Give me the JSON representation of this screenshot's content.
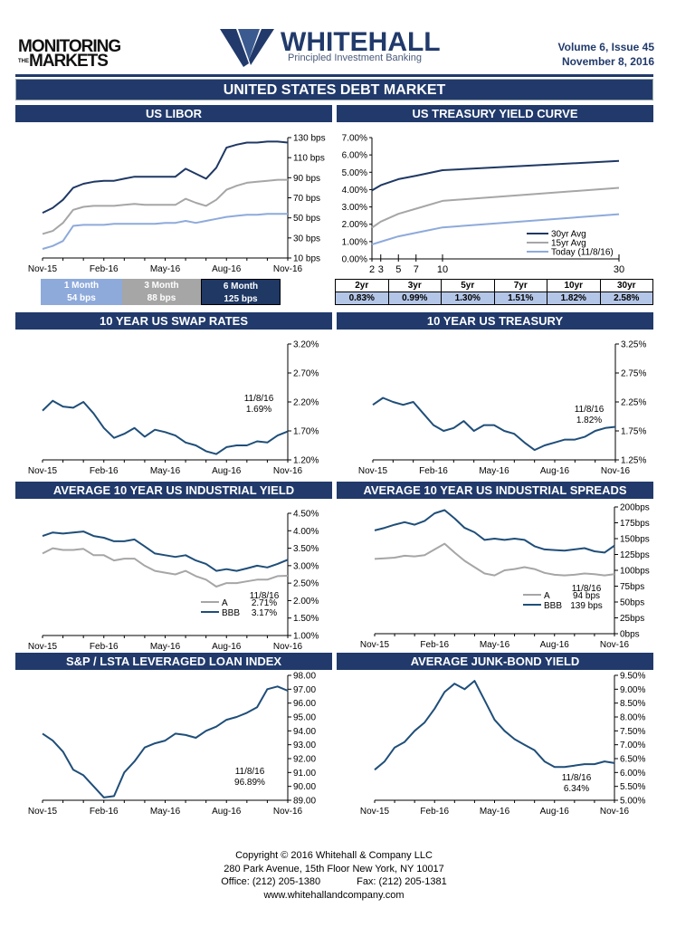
{
  "header": {
    "left_logo": "MONITORING THE MARKETS",
    "brand": "WHITEHALL",
    "tagline": "Principled Investment Banking",
    "volume": "Volume 6, Issue 45",
    "date": "November 8, 2016"
  },
  "banner": "UNITED STATES DEBT MARKET",
  "sections": {
    "libor": "US LIBOR",
    "yield_curve": "US TREASURY YIELD CURVE",
    "swap": "10 YEAR US SWAP RATES",
    "treasury": "10 YEAR US TREASURY",
    "industrial_yield": "AVERAGE 10 YEAR US INDUSTRIAL YIELD",
    "industrial_spreads": "AVERAGE 10 YEAR US INDUSTRIAL SPREADS",
    "loan_index": "S&P / LSTA LEVERAGED LOAN INDEX",
    "junk": "AVERAGE JUNK-BOND YIELD"
  },
  "libor_legend": [
    {
      "label": "1 Month",
      "value": "54 bps",
      "color": "#8eaadb"
    },
    {
      "label": "3 Month",
      "value": "88 bps",
      "color": "#a6a6a6"
    },
    {
      "label": "6 Month",
      "value": "125 bps",
      "color": "#1f3864"
    }
  ],
  "yield_table": {
    "headers": [
      "2yr",
      "3yr",
      "5yr",
      "7yr",
      "10yr",
      "30yr"
    ],
    "values": [
      "0.83%",
      "0.99%",
      "1.30%",
      "1.51%",
      "1.82%",
      "2.58%"
    ]
  },
  "chart_data": [
    {
      "id": "libor",
      "type": "line",
      "ylim": [
        10,
        130
      ],
      "y_ticks": [
        "10 bps",
        "30 bps",
        "50 bps",
        "70 bps",
        "90 bps",
        "110 bps",
        "130 bps"
      ],
      "x_ticks": [
        "Nov-15",
        "Feb-16",
        "May-16",
        "Aug-16",
        "Nov-16"
      ],
      "series": [
        {
          "name": "1 Month",
          "color": "#8eaadb",
          "values": [
            19,
            22,
            27,
            42,
            43,
            43,
            43,
            44,
            44,
            44,
            44,
            44,
            45,
            45,
            47,
            45,
            47,
            49,
            51,
            52,
            53,
            53,
            54,
            54,
            54
          ]
        },
        {
          "name": "3 Month",
          "color": "#a6a6a6",
          "values": [
            34,
            37,
            45,
            58,
            61,
            62,
            62,
            62,
            63,
            64,
            63,
            63,
            63,
            63,
            69,
            65,
            62,
            68,
            78,
            82,
            85,
            86,
            87,
            88,
            88
          ]
        },
        {
          "name": "6 Month",
          "color": "#1f3864",
          "values": [
            55,
            60,
            68,
            80,
            84,
            86,
            87,
            87,
            89,
            91,
            91,
            91,
            91,
            91,
            99,
            94,
            89,
            100,
            120,
            123,
            125,
            125,
            126,
            126,
            125
          ]
        }
      ]
    },
    {
      "id": "yield_curve",
      "type": "line",
      "xlim": [
        2,
        30
      ],
      "x": [
        2,
        3,
        5,
        7,
        10,
        30
      ],
      "ylim": [
        0,
        7
      ],
      "y_ticks": [
        "0.00%",
        "1.00%",
        "2.00%",
        "3.00%",
        "4.00%",
        "5.00%",
        "6.00%",
        "7.00%"
      ],
      "x_ticks": [
        "2",
        "3",
        "5",
        "7",
        "10",
        "30"
      ],
      "legend_position": "bottom-right",
      "series": [
        {
          "name": "30yr Avg",
          "color": "#1f3864",
          "values": [
            3.95,
            4.25,
            4.6,
            4.8,
            5.12,
            5.65
          ]
        },
        {
          "name": "15yr Avg",
          "color": "#a6a6a6",
          "values": [
            1.8,
            2.15,
            2.6,
            2.9,
            3.35,
            4.1
          ]
        },
        {
          "name": "Today (11/8/16)",
          "color": "#8eaadb",
          "values": [
            0.83,
            0.99,
            1.3,
            1.51,
            1.82,
            2.58
          ]
        }
      ]
    },
    {
      "id": "swap",
      "type": "line",
      "ylim": [
        1.2,
        3.2
      ],
      "y_ticks": [
        "1.20%",
        "1.70%",
        "2.20%",
        "2.70%",
        "3.20%"
      ],
      "x_ticks": [
        "Nov-15",
        "Feb-16",
        "May-16",
        "Aug-16",
        "Nov-16"
      ],
      "annotation": [
        "11/8/16",
        "1.69%"
      ],
      "series": [
        {
          "color": "#1f4e79",
          "values": [
            2.05,
            2.22,
            2.12,
            2.1,
            2.2,
            2.0,
            1.75,
            1.58,
            1.65,
            1.75,
            1.6,
            1.72,
            1.68,
            1.62,
            1.5,
            1.45,
            1.35,
            1.3,
            1.42,
            1.45,
            1.45,
            1.52,
            1.5,
            1.62,
            1.69
          ]
        }
      ]
    },
    {
      "id": "treasury",
      "type": "line",
      "ylim": [
        1.25,
        3.25
      ],
      "y_ticks": [
        "1.25%",
        "1.75%",
        "2.25%",
        "2.75%",
        "3.25%"
      ],
      "x_ticks": [
        "Nov-15",
        "Feb-16",
        "May-16",
        "Aug-16",
        "Nov-16"
      ],
      "annotation": [
        "11/8/16",
        "1.82%"
      ],
      "series": [
        {
          "color": "#1f4e79",
          "values": [
            2.2,
            2.32,
            2.25,
            2.2,
            2.25,
            2.05,
            1.85,
            1.75,
            1.8,
            1.92,
            1.75,
            1.85,
            1.85,
            1.75,
            1.7,
            1.55,
            1.42,
            1.5,
            1.55,
            1.6,
            1.6,
            1.65,
            1.75,
            1.8,
            1.82
          ]
        }
      ]
    },
    {
      "id": "industrial_yield",
      "type": "line",
      "ylim": [
        1,
        4.5
      ],
      "y_ticks": [
        "1.00%",
        "1.50%",
        "2.00%",
        "2.50%",
        "3.00%",
        "3.50%",
        "4.00%",
        "4.50%"
      ],
      "x_ticks": [
        "Nov-15",
        "Feb-16",
        "May-16",
        "Aug-16",
        "Nov-16"
      ],
      "legend_position": "bottom-right",
      "legend_header": "11/8/16",
      "series": [
        {
          "name": "A",
          "latest": "2.71%",
          "color": "#a6a6a6",
          "values": [
            3.35,
            3.5,
            3.45,
            3.45,
            3.48,
            3.3,
            3.3,
            3.15,
            3.2,
            3.2,
            3.0,
            2.85,
            2.8,
            2.75,
            2.85,
            2.7,
            2.6,
            2.4,
            2.5,
            2.5,
            2.55,
            2.6,
            2.6,
            2.7,
            2.71
          ]
        },
        {
          "name": "BBB",
          "latest": "3.17%",
          "color": "#1f4e79",
          "values": [
            3.85,
            3.95,
            3.92,
            3.95,
            3.98,
            3.85,
            3.8,
            3.7,
            3.7,
            3.75,
            3.55,
            3.35,
            3.3,
            3.25,
            3.3,
            3.15,
            3.05,
            2.85,
            2.9,
            2.85,
            2.92,
            3.0,
            2.95,
            3.05,
            3.17
          ]
        }
      ]
    },
    {
      "id": "industrial_spreads",
      "type": "line",
      "ylim": [
        0,
        200
      ],
      "y_ticks": [
        "0bps",
        "25bps",
        "50bps",
        "75bps",
        "100bps",
        "125bps",
        "150bps",
        "175bps",
        "200bps"
      ],
      "x_ticks": [
        "Nov-15",
        "Feb-16",
        "May-16",
        "Aug-16",
        "Nov-16"
      ],
      "legend_position": "bottom-right",
      "legend_header": "11/8/16",
      "series": [
        {
          "name": "A",
          "latest": "94 bps",
          "color": "#a6a6a6",
          "values": [
            118,
            119,
            120,
            123,
            122,
            124,
            133,
            142,
            128,
            115,
            105,
            95,
            92,
            100,
            102,
            105,
            102,
            96,
            93,
            92,
            93,
            95,
            94,
            92,
            94
          ]
        },
        {
          "name": "BBB",
          "latest": "139 bps",
          "color": "#1f4e79",
          "values": [
            163,
            167,
            172,
            176,
            172,
            178,
            190,
            195,
            182,
            167,
            160,
            148,
            150,
            148,
            150,
            148,
            138,
            133,
            132,
            131,
            133,
            135,
            130,
            128,
            139
          ]
        }
      ]
    },
    {
      "id": "loan_index",
      "type": "line",
      "ylim": [
        89,
        98
      ],
      "y_ticks": [
        "89.00",
        "90.00",
        "91.00",
        "92.00",
        "93.00",
        "94.00",
        "95.00",
        "96.00",
        "97.00",
        "98.00"
      ],
      "x_ticks": [
        "Nov-15",
        "Feb-16",
        "May-16",
        "Aug-16",
        "Nov-16"
      ],
      "annotation": [
        "11/8/16",
        "96.89%"
      ],
      "series": [
        {
          "color": "#1f4e79",
          "values": [
            93.8,
            93.3,
            92.5,
            91.2,
            90.8,
            90.0,
            89.2,
            89.3,
            91.0,
            91.8,
            92.8,
            93.1,
            93.3,
            93.8,
            93.7,
            93.5,
            94.0,
            94.3,
            94.8,
            95.0,
            95.3,
            95.7,
            97.0,
            97.2,
            96.89
          ]
        }
      ]
    },
    {
      "id": "junk",
      "type": "line",
      "ylim": [
        5,
        9.5
      ],
      "y_ticks": [
        "5.00%",
        "5.50%",
        "6.00%",
        "6.50%",
        "7.00%",
        "7.50%",
        "8.00%",
        "8.50%",
        "9.00%",
        "9.50%"
      ],
      "x_ticks": [
        "Nov-15",
        "Feb-16",
        "May-16",
        "Aug-16",
        "Nov-16"
      ],
      "annotation": [
        "11/8/16",
        "6.34%"
      ],
      "series": [
        {
          "color": "#1f4e79",
          "values": [
            6.1,
            6.4,
            6.9,
            7.1,
            7.5,
            7.8,
            8.3,
            8.9,
            9.2,
            9.0,
            9.3,
            8.6,
            7.9,
            7.5,
            7.2,
            7.0,
            6.8,
            6.4,
            6.2,
            6.2,
            6.25,
            6.3,
            6.3,
            6.4,
            6.34
          ]
        }
      ]
    }
  ],
  "footer": {
    "copyright": "Copyright © 2016 Whitehall & Company LLC",
    "address": "280 Park Avenue, 15th Floor New York, NY 10017",
    "office": "Office: (212) 205-1380",
    "fax": "Fax: (212) 205-1381",
    "website": "www.whitehallandcompany.com"
  }
}
